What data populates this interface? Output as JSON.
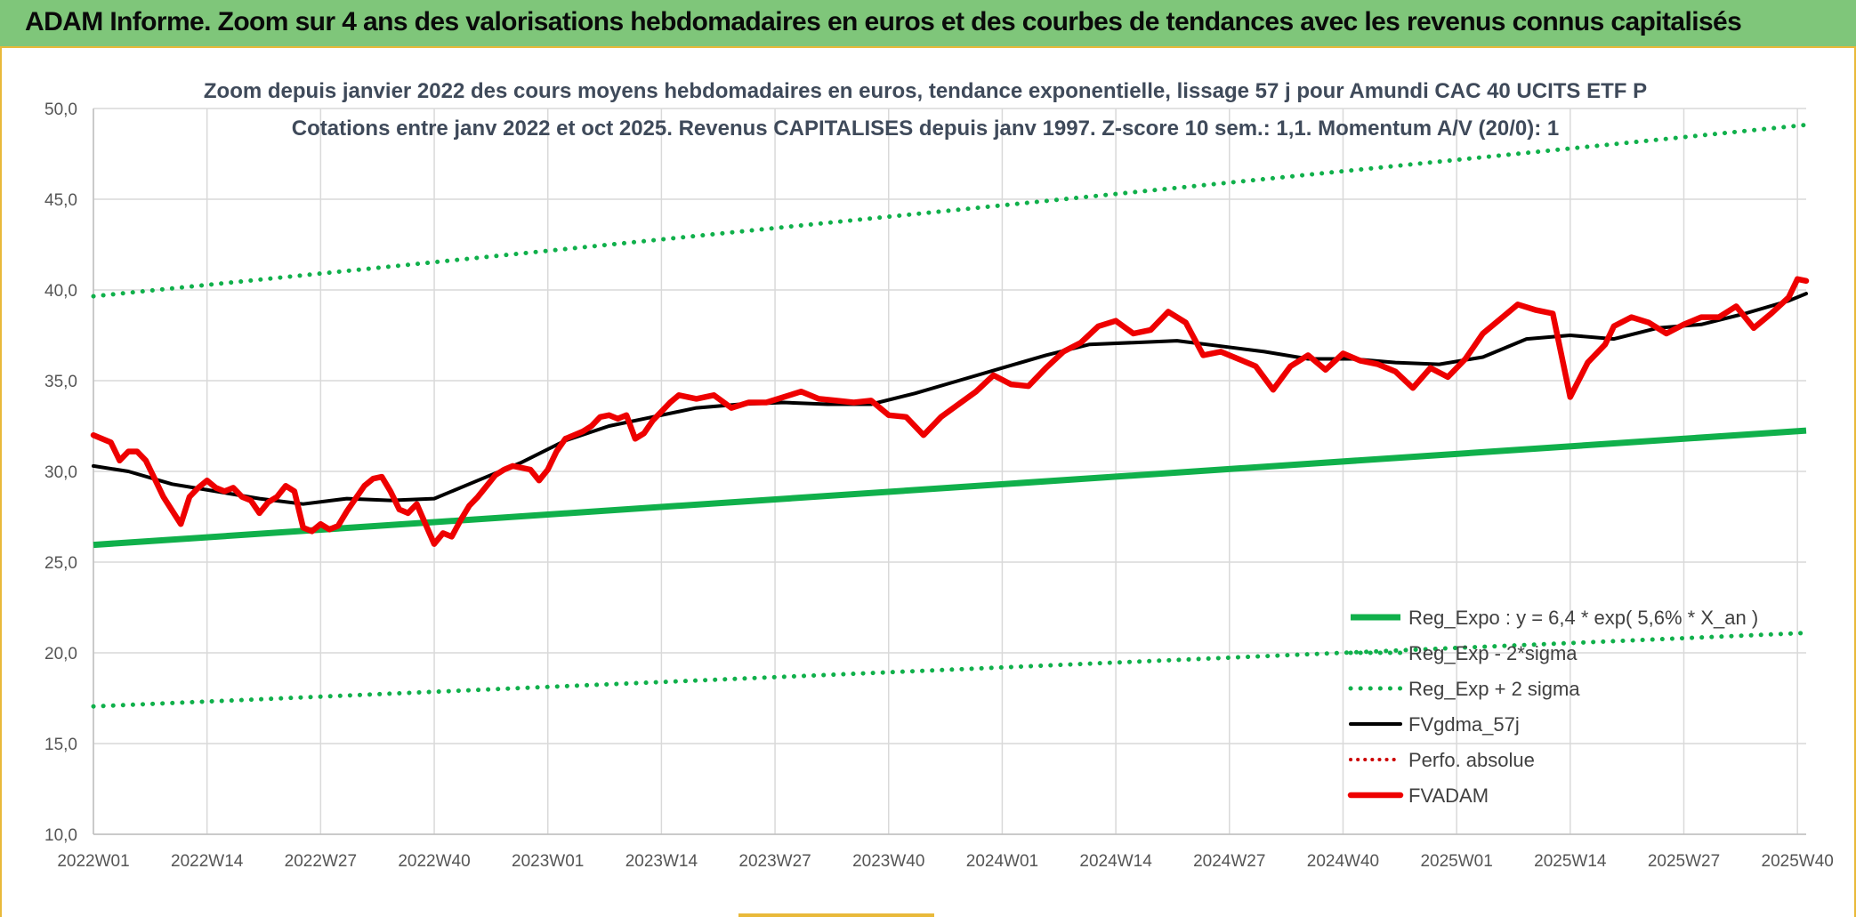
{
  "banner": {
    "title": "ADAM Informe. Zoom sur 4 ans des valorisations hebdomadaires en euros et des courbes de tendances avec les revenus connus capitalisés"
  },
  "colors": {
    "banner_bg": "#7fc67a",
    "frame_border": "#e9b93a",
    "reg_expo": "#10b04b",
    "fvgdma": "#000000",
    "fvadam": "#ee0000",
    "perfo": "#cc0000",
    "grid": "#d9d9d9",
    "title_text": "#3f4a5a",
    "tick_text": "#555555"
  },
  "chart_data": {
    "type": "line",
    "title": "Zoom depuis janvier 2022 des cours moyens hebdomadaires en euros, tendance exponentielle, lissage 57 j pour Amundi CAC 40 UCITS ETF P",
    "subtitle": "Cotations entre janv 2022 et oct 2025. Revenus CAPITALISES depuis janv 1997. Z-score 10 sem.: 1,1. Momentum A/V (20/0): 1",
    "xlabel": "",
    "ylabel": "",
    "ylim": [
      10,
      50
    ],
    "yticks": [
      "10,0",
      "15,0",
      "20,0",
      "25,0",
      "30,0",
      "35,0",
      "40,0",
      "45,0",
      "50,0"
    ],
    "xlim": [
      1,
      197
    ],
    "xtick_positions": [
      1,
      14,
      27,
      40,
      53,
      66,
      79,
      92,
      105,
      118,
      131,
      144,
      157,
      170,
      183,
      196
    ],
    "xtick_labels": [
      "2022W01",
      "2022W14",
      "2022W27",
      "2022W40",
      "2023W01",
      "2023W14",
      "2023W27",
      "2023W40",
      "2024W01",
      "2024W14",
      "2024W27",
      "2024W40",
      "2025W01",
      "2025W14",
      "2025W27",
      "2025W40"
    ],
    "grid": true,
    "legend_position": "bottom-right",
    "series": [
      {
        "name": "Reg_Expo : y = 6,4 * exp( 5,6% *  X_an )",
        "style": "solid-thick",
        "x": [
          1,
          197
        ],
        "values": [
          25.95,
          32.25
        ]
      },
      {
        "name": "Reg_Exp - 2*sigma",
        "style": "dotted",
        "x": [
          1,
          197
        ],
        "values": [
          17.05,
          21.1
        ]
      },
      {
        "name": "Reg_Exp + 2 sigma",
        "style": "dotted",
        "x": [
          1,
          197
        ],
        "values": [
          39.65,
          49.1
        ]
      },
      {
        "name": "FVgdma_57j",
        "style": "solid",
        "x": [
          1,
          5,
          10,
          15,
          20,
          25,
          30,
          35,
          40,
          45,
          50,
          55,
          60,
          65,
          70,
          75,
          80,
          85,
          90,
          95,
          100,
          105,
          110,
          115,
          120,
          125,
          130,
          135,
          140,
          145,
          150,
          155,
          160,
          165,
          170,
          175,
          180,
          185,
          190,
          195,
          197
        ],
        "values": [
          30.3,
          30.0,
          29.3,
          28.9,
          28.5,
          28.2,
          28.5,
          28.4,
          28.5,
          29.5,
          30.5,
          31.7,
          32.5,
          33.0,
          33.5,
          33.7,
          33.8,
          33.7,
          33.7,
          34.3,
          35.0,
          35.7,
          36.4,
          37.0,
          37.1,
          37.2,
          36.9,
          36.6,
          36.2,
          36.2,
          36.0,
          35.9,
          36.3,
          37.3,
          37.5,
          37.3,
          37.9,
          38.1,
          38.7,
          39.4,
          39.8
        ]
      },
      {
        "name": "Perfo. absolue",
        "style": "dotted-red",
        "x": [],
        "values": []
      },
      {
        "name": "FVADAM",
        "style": "solid-thick",
        "x": [
          1,
          3,
          4,
          5,
          6,
          7,
          8,
          9,
          11,
          12,
          13,
          14,
          15,
          16,
          17,
          18,
          19,
          20,
          21,
          22,
          23,
          24,
          25,
          26,
          27,
          28,
          29,
          30,
          31,
          32,
          33,
          34,
          35,
          36,
          37,
          38,
          39,
          40,
          41,
          42,
          43,
          44,
          45,
          46,
          47,
          48,
          49,
          50,
          51,
          52,
          53,
          54,
          55,
          56,
          57,
          58,
          59,
          60,
          61,
          62,
          63,
          64,
          65,
          66,
          67,
          68,
          70,
          72,
          74,
          76,
          78,
          80,
          82,
          84,
          86,
          88,
          90,
          92,
          94,
          96,
          98,
          100,
          102,
          104,
          106,
          108,
          110,
          112,
          114,
          116,
          118,
          120,
          122,
          124,
          126,
          128,
          130,
          132,
          134,
          136,
          138,
          140,
          142,
          144,
          146,
          148,
          150,
          152,
          154,
          156,
          158,
          160,
          162,
          164,
          166,
          168,
          170,
          172,
          174,
          175,
          177,
          179,
          181,
          183,
          185,
          187,
          189,
          191,
          193,
          195,
          196,
          197
        ],
        "values": [
          32.0,
          31.6,
          30.6,
          31.1,
          31.1,
          30.6,
          29.6,
          28.6,
          27.1,
          28.6,
          29.1,
          29.5,
          29.1,
          28.9,
          29.1,
          28.6,
          28.4,
          27.7,
          28.3,
          28.6,
          29.2,
          28.9,
          26.9,
          26.7,
          27.1,
          26.8,
          27.0,
          27.8,
          28.5,
          29.2,
          29.6,
          29.7,
          28.9,
          27.9,
          27.7,
          28.2,
          27.1,
          26.0,
          26.6,
          26.4,
          27.3,
          28.1,
          28.6,
          29.2,
          29.8,
          30.1,
          30.3,
          30.2,
          30.1,
          29.5,
          30.1,
          31.1,
          31.8,
          32.0,
          32.2,
          32.5,
          33.0,
          33.1,
          32.9,
          33.1,
          31.8,
          32.1,
          32.8,
          33.3,
          33.8,
          34.2,
          34.0,
          34.2,
          33.5,
          33.8,
          33.8,
          34.1,
          34.4,
          34.0,
          33.9,
          33.8,
          33.9,
          33.1,
          33.0,
          32.0,
          33.0,
          33.7,
          34.4,
          35.3,
          34.8,
          34.7,
          35.7,
          36.6,
          37.1,
          38.0,
          38.3,
          37.6,
          37.8,
          38.8,
          38.2,
          36.4,
          36.6,
          36.2,
          35.8,
          34.5,
          35.8,
          36.4,
          35.6,
          36.5,
          36.1,
          35.9,
          35.5,
          34.6,
          35.7,
          35.2,
          36.2,
          37.6,
          38.4,
          39.2,
          38.9,
          38.7,
          34.1,
          36.0,
          37.0,
          38.0,
          38.5,
          38.2,
          37.6,
          38.1,
          38.5,
          38.5,
          39.1,
          37.9,
          38.7,
          39.6,
          40.6,
          40.5
        ]
      }
    ]
  }
}
